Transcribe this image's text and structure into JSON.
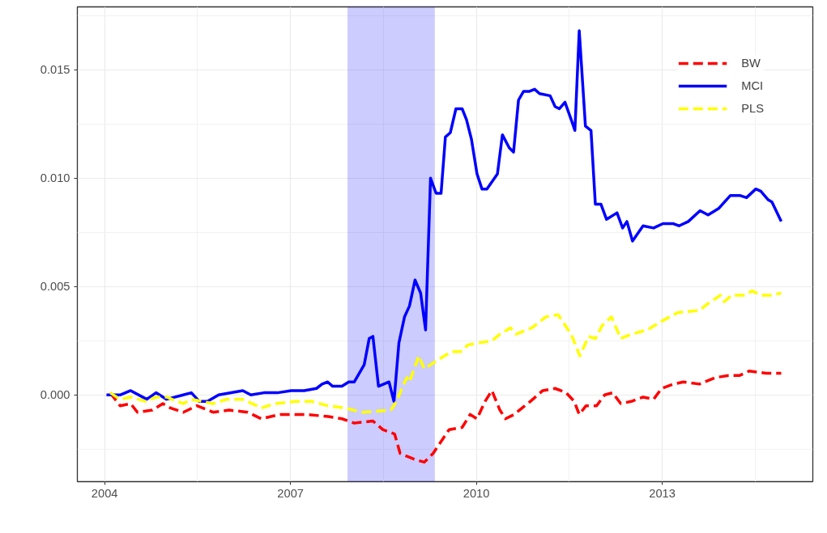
{
  "chart_data": {
    "type": "line",
    "xlim": [
      2003.56,
      2015.43
    ],
    "xticks": [
      2004,
      2007,
      2010,
      2013
    ],
    "ylim": [
      -0.004,
      0.0179
    ],
    "yticks": [
      {
        "value": 0,
        "label": "0.000"
      },
      {
        "value": 0.005,
        "label": "0.005"
      },
      {
        "value": 0.01,
        "label": "0.010"
      },
      {
        "value": 0.015,
        "label": "0.015"
      }
    ],
    "grid": true,
    "legend": "top right",
    "bands": [
      {
        "axis": "x",
        "from": 2007.92,
        "to": 2009.33,
        "color": "#0000ff"
      }
    ],
    "series": [
      {
        "name": "BW",
        "color": "#ff0000",
        "line_style": "dashed",
        "x": [
          2004.09,
          2004.25,
          2004.42,
          2004.53,
          2004.77,
          2004.94,
          2005.06,
          2005.27,
          2005.49,
          2005.75,
          2006.01,
          2006.31,
          2006.53,
          2006.83,
          2007.27,
          2007.61,
          2007.83,
          2008.03,
          2008.33,
          2008.49,
          2008.68,
          2008.77,
          2009.03,
          2009.16,
          2009.3,
          2009.56,
          2009.77,
          2009.9,
          2010.01,
          2010.14,
          2010.25,
          2010.38,
          2010.47,
          2010.61,
          2010.87,
          2011.07,
          2011.27,
          2011.45,
          2011.58,
          2011.66,
          2011.77,
          2011.94,
          2012.07,
          2012.2,
          2012.33,
          2012.5,
          2012.69,
          2012.86,
          2012.99,
          2013.18,
          2013.34,
          2013.6,
          2013.86,
          2014.07,
          2014.25,
          2014.4,
          2014.68,
          2014.92
        ],
        "values": [
          0.0001,
          -0.0005,
          -0.0004,
          -0.0008,
          -0.0007,
          -0.0004,
          -0.0006,
          -0.0008,
          -0.0005,
          -0.0008,
          -0.0007,
          -0.0008,
          -0.0011,
          -0.0009,
          -0.0009,
          -0.001,
          -0.0011,
          -0.0013,
          -0.0012,
          -0.0016,
          -0.0018,
          -0.0027,
          -0.003,
          -0.0031,
          -0.0027,
          -0.0016,
          -0.0015,
          -0.0009,
          -0.0011,
          -0.0003,
          0.0002,
          -0.0007,
          -0.0011,
          -0.0009,
          -0.0003,
          0.0002,
          0.0003,
          0.0001,
          -0.0003,
          -0.0009,
          -0.0005,
          -0.0005,
          0.0,
          0.0001,
          -0.0004,
          -0.0003,
          -0.0001,
          -0.0002,
          0.0003,
          0.0005,
          0.0006,
          0.0005,
          0.0008,
          0.0009,
          0.0009,
          0.0011,
          0.001,
          0.001
        ]
      },
      {
        "name": "MCI",
        "color": "#0000ff",
        "line_style": "solid",
        "x": [
          2004.03,
          2004.25,
          2004.42,
          2004.68,
          2004.83,
          2005.0,
          2005.27,
          2005.4,
          2005.53,
          2005.66,
          2005.84,
          2006.23,
          2006.36,
          2006.57,
          2006.79,
          2007.01,
          2007.22,
          2007.42,
          2007.51,
          2007.6,
          2007.68,
          2007.83,
          2007.94,
          2008.03,
          2008.19,
          2008.27,
          2008.33,
          2008.42,
          2008.59,
          2008.67,
          2008.75,
          2008.84,
          2008.92,
          2009.01,
          2009.1,
          2009.18,
          2009.26,
          2009.35,
          2009.43,
          2009.5,
          2009.58,
          2009.67,
          2009.77,
          2009.84,
          2009.92,
          2010.01,
          2010.09,
          2010.17,
          2010.34,
          2010.42,
          2010.53,
          2010.6,
          2010.68,
          2010.76,
          2010.85,
          2010.94,
          2011.02,
          2011.19,
          2011.27,
          2011.34,
          2011.43,
          2011.53,
          2011.59,
          2011.66,
          2011.76,
          2011.85,
          2011.92,
          2012.01,
          2012.1,
          2012.27,
          2012.36,
          2012.43,
          2012.52,
          2012.69,
          2012.86,
          2013.01,
          2013.18,
          2013.27,
          2013.42,
          2013.61,
          2013.74,
          2013.91,
          2014.1,
          2014.25,
          2014.36,
          2014.51,
          2014.59,
          2014.71,
          2014.77,
          2014.92
        ],
        "values": [
          0.0,
          0.0,
          0.0002,
          -0.0002,
          0.0001,
          -0.0002,
          0.0,
          0.0001,
          -0.0003,
          -0.0003,
          0.0,
          0.0002,
          0.0,
          0.0001,
          0.0001,
          0.0002,
          0.0002,
          0.0003,
          0.0005,
          0.0006,
          0.0004,
          0.0004,
          0.0006,
          0.0006,
          0.0014,
          0.0026,
          0.0027,
          0.0004,
          0.0006,
          -0.0003,
          0.0024,
          0.0036,
          0.0041,
          0.0053,
          0.0047,
          0.003,
          0.01,
          0.0093,
          0.0093,
          0.0119,
          0.0121,
          0.0132,
          0.0132,
          0.0127,
          0.0118,
          0.0102,
          0.0095,
          0.0095,
          0.0102,
          0.012,
          0.0114,
          0.0112,
          0.0136,
          0.014,
          0.014,
          0.0141,
          0.0139,
          0.0138,
          0.0133,
          0.0132,
          0.0135,
          0.0127,
          0.0122,
          0.0168,
          0.0124,
          0.0122,
          0.0088,
          0.0088,
          0.0081,
          0.0084,
          0.0077,
          0.008,
          0.0071,
          0.0078,
          0.0077,
          0.0079,
          0.0079,
          0.0078,
          0.008,
          0.0085,
          0.0083,
          0.0086,
          0.0092,
          0.0092,
          0.0091,
          0.0095,
          0.0094,
          0.009,
          0.0089,
          0.008
        ]
      },
      {
        "name": "PLS",
        "color": "#ffff00",
        "line_style": "dashed",
        "x": [
          2004.09,
          2004.25,
          2004.42,
          2004.67,
          2004.83,
          2005.0,
          2005.27,
          2005.4,
          2005.75,
          2005.97,
          2006.23,
          2006.53,
          2006.75,
          2007.09,
          2007.35,
          2007.6,
          2007.87,
          2008.16,
          2008.62,
          2008.71,
          2008.81,
          2008.88,
          2008.92,
          2009.07,
          2009.16,
          2009.37,
          2009.6,
          2009.75,
          2009.86,
          2010.03,
          2010.25,
          2010.38,
          2010.55,
          2010.64,
          2010.9,
          2011.12,
          2011.32,
          2011.53,
          2011.67,
          2011.81,
          2011.92,
          2012.03,
          2012.18,
          2012.33,
          2012.5,
          2012.76,
          2012.99,
          2013.25,
          2013.6,
          2013.73,
          2013.94,
          2014.0,
          2014.12,
          2014.33,
          2014.45,
          2014.59,
          2014.77,
          2014.92
        ],
        "values": [
          0.0001,
          -0.0002,
          -0.0001,
          -0.0003,
          -0.0001,
          -0.0001,
          -0.0004,
          -0.0002,
          -0.0004,
          -0.0002,
          -0.0002,
          -0.0006,
          -0.0004,
          -0.0003,
          -0.0003,
          -0.0005,
          -0.0006,
          -0.0008,
          -0.0007,
          -0.0003,
          0.0004,
          0.0008,
          0.0006,
          0.0018,
          0.0012,
          0.0016,
          0.002,
          0.002,
          0.0023,
          0.0024,
          0.0025,
          0.0028,
          0.0031,
          0.0028,
          0.0031,
          0.0036,
          0.0037,
          0.0028,
          0.0018,
          0.0027,
          0.0026,
          0.0032,
          0.0036,
          0.0026,
          0.0028,
          0.003,
          0.0034,
          0.0038,
          0.0039,
          0.0042,
          0.0046,
          0.0043,
          0.0046,
          0.0046,
          0.0048,
          0.0046,
          0.0046,
          0.0047
        ]
      }
    ]
  }
}
